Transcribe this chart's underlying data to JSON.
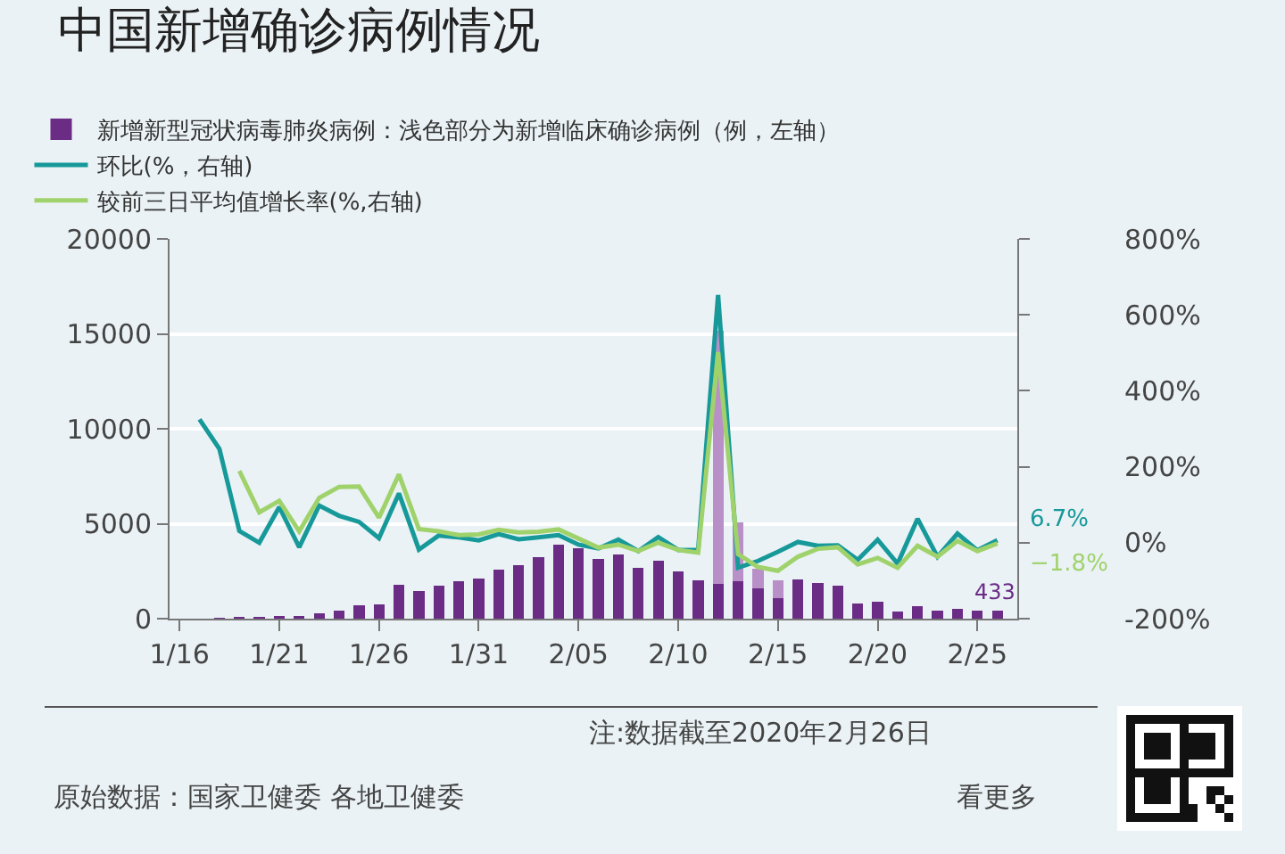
{
  "chart_data": {
    "type": "bar",
    "title": "中国新增确诊病例情况",
    "x": [
      "2020-01-16",
      "2020-01-17",
      "2020-01-18",
      "2020-01-19",
      "2020-01-20",
      "2020-01-21",
      "2020-01-22",
      "2020-01-23",
      "2020-01-24",
      "2020-01-25",
      "2020-01-26",
      "2020-01-27",
      "2020-01-28",
      "2020-01-29",
      "2020-01-30",
      "2020-01-31",
      "2020-02-01",
      "2020-02-02",
      "2020-02-03",
      "2020-02-04",
      "2020-02-05",
      "2020-02-06",
      "2020-02-07",
      "2020-02-08",
      "2020-02-09",
      "2020-02-10",
      "2020-02-11",
      "2020-02-12",
      "2020-02-13",
      "2020-02-14",
      "2020-02-15",
      "2020-02-16",
      "2020-02-17",
      "2020-02-18",
      "2020-02-19",
      "2020-02-20",
      "2020-02-21",
      "2020-02-22",
      "2020-02-23",
      "2020-02-24",
      "2020-02-25",
      "2020-02-26"
    ],
    "series": [
      {
        "name": "新增新型冠状病毒肺炎病例：浅色部分为新增临床确诊病例（例，左轴）",
        "color": "#6b2c85",
        "values": [
          4,
          17,
          59,
          77,
          77,
          149,
          131,
          259,
          444,
          688,
          769,
          1771,
          1459,
          1737,
          1982,
          2102,
          2590,
          2829,
          3235,
          3887,
          3694,
          3143,
          3399,
          2656,
          3062,
          2478,
          2015,
          1820,
          1995,
          1600,
          1100,
          2048,
          1886,
          1749,
          820,
          889,
          397,
          648,
          409,
          508,
          406,
          433
        ],
        "value_labels": [
          null,
          null,
          null,
          null,
          null,
          null,
          null,
          null,
          null,
          null,
          null,
          null,
          null,
          null,
          null,
          null,
          null,
          null,
          null,
          null,
          null,
          null,
          null,
          null,
          null,
          null,
          null,
          null,
          null,
          null,
          null,
          null,
          null,
          null,
          null,
          null,
          null,
          null,
          null,
          null,
          null,
          "433"
        ]
      },
      {
        "color": "#b98fc8",
        "values": [
          null,
          null,
          null,
          null,
          null,
          null,
          null,
          null,
          null,
          null,
          null,
          null,
          null,
          null,
          null,
          null,
          null,
          null,
          null,
          null,
          null,
          null,
          null,
          null,
          null,
          null,
          null,
          13332,
          3095,
          1041,
          909,
          null,
          null,
          null,
          null,
          null,
          null,
          null,
          null,
          null,
          null,
          null
        ]
      },
      {
        "name": "环比(%，右轴)",
        "type": "line",
        "axis": "y2",
        "color": "#17999a",
        "values": [
          null,
          325,
          247,
          31,
          0,
          94,
          -12,
          98,
          71,
          55,
          12,
          130,
          -18,
          19,
          14,
          6,
          23,
          9,
          14,
          20,
          -5,
          -15,
          8,
          -22,
          15,
          -19,
          -19,
          652,
          -66,
          -48,
          -24,
          2,
          -8,
          -7,
          -45,
          8,
          -55,
          63,
          -37,
          24,
          -20,
          6.7
        ],
        "value_labels": [
          null,
          null,
          null,
          null,
          null,
          null,
          null,
          null,
          null,
          null,
          null,
          null,
          null,
          null,
          null,
          null,
          null,
          null,
          null,
          null,
          null,
          null,
          null,
          null,
          null,
          null,
          null,
          null,
          null,
          null,
          null,
          null,
          null,
          null,
          null,
          null,
          null,
          null,
          null,
          null,
          null,
          "6.7%"
        ]
      },
      {
        "name": "较前三日平均值增长率(%,右轴)",
        "type": "line",
        "axis": "y2",
        "color": "#a0d26c",
        "values": [
          null,
          null,
          null,
          189,
          80,
          110,
          30,
          118,
          147,
          148,
          66,
          180,
          36,
          30,
          20,
          22,
          34,
          27,
          29,
          35,
          11,
          -13,
          -5,
          -22,
          0,
          -19,
          -26,
          502,
          -30,
          -64,
          -74,
          -37,
          -16,
          -12,
          -57,
          -40,
          -66,
          -8,
          -37,
          5,
          -22,
          -1.8
        ],
        "value_labels": [
          null,
          null,
          null,
          null,
          null,
          null,
          null,
          null,
          null,
          null,
          null,
          null,
          null,
          null,
          null,
          null,
          null,
          null,
          null,
          null,
          null,
          null,
          null,
          null,
          null,
          null,
          null,
          null,
          null,
          null,
          null,
          null,
          null,
          null,
          null,
          null,
          null,
          null,
          null,
          null,
          null,
          "−1.8%"
        ]
      }
    ],
    "stacked": true,
    "xlim": [
      "2020-01-15T12:00",
      "2020-02-27T00:00"
    ],
    "xticks": [
      {
        "value": "2020-01-16",
        "label": "1/16"
      },
      {
        "value": "2020-01-21",
        "label": "1/21"
      },
      {
        "value": "2020-01-26",
        "label": "1/26"
      },
      {
        "value": "2020-01-31",
        "label": "1/31"
      },
      {
        "value": "2020-02-05",
        "label": "2/05"
      },
      {
        "value": "2020-02-10",
        "label": "2/10"
      },
      {
        "value": "2020-02-15",
        "label": "2/15"
      },
      {
        "value": "2020-02-20",
        "label": "2/20"
      },
      {
        "value": "2020-02-25",
        "label": "2/25"
      }
    ],
    "ylim": [
      0,
      20000
    ],
    "yticks": [
      0,
      5000,
      10000,
      15000,
      20000
    ],
    "y2lim": [
      -200,
      800
    ],
    "y2ticks": [
      {
        "value": -200,
        "label": "-200%"
      },
      {
        "value": 0,
        "label": "0%"
      },
      {
        "value": 200,
        "label": "200%"
      },
      {
        "value": 400,
        "label": "400%"
      },
      {
        "value": 600,
        "label": "600%"
      },
      {
        "value": 800,
        "label": "800%"
      }
    ],
    "grid": "y",
    "legend": "top left",
    "annotations": [
      "注:数据截至2020年2月26日",
      "原始数据：国家卫健委 各地卫健委",
      "看更多"
    ]
  }
}
